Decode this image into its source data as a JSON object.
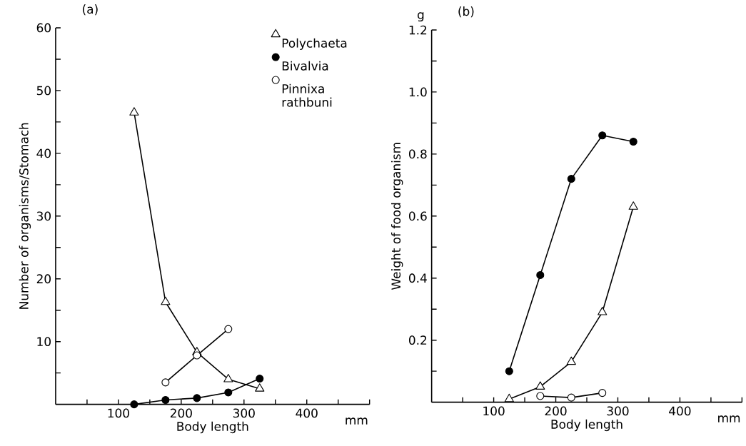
{
  "chart_data": [
    {
      "type": "line",
      "title": "(a)",
      "xlabel": "Body length",
      "ylabel": "Number of organisms/Stomach",
      "annotations": [
        "mm"
      ],
      "x": [
        125,
        175,
        225,
        275,
        325
      ],
      "xlim": [
        0,
        500
      ],
      "ylim": [
        0,
        60
      ],
      "xticks": [
        {
          "value": 50,
          "label": null
        },
        100,
        {
          "value": 150,
          "label": null
        },
        200,
        {
          "value": 250,
          "label": null
        },
        300,
        {
          "value": 350,
          "label": null
        },
        400,
        {
          "value": 450,
          "label": null
        },
        {
          "value": 500,
          "label": null
        }
      ],
      "yticks": [
        {
          "value": 5,
          "label": null
        },
        10,
        {
          "value": 15,
          "label": null
        },
        20,
        {
          "value": 25,
          "label": null
        },
        30,
        {
          "value": 35,
          "label": null
        },
        40,
        {
          "value": 45,
          "label": null
        },
        50,
        {
          "value": 55,
          "label": null
        },
        60
      ],
      "legend": "top right",
      "line_style": "solid",
      "series": [
        {
          "name": "Polychaeta",
          "color": "#ffffff",
          "marker": "triangle",
          "values": [
            46.5,
            16.3,
            8.3,
            4.0,
            2.5
          ]
        },
        {
          "name": "Bivalvia",
          "color": "#000000",
          "marker": "circle",
          "values": [
            0.0,
            0.7,
            1.0,
            1.9,
            4.1
          ]
        },
        {
          "name": "Pinnixa rathbuni",
          "color": "#ffffff",
          "marker": "circle",
          "values": [
            null,
            3.5,
            7.8,
            12.0,
            null
          ]
        }
      ]
    },
    {
      "type": "line",
      "title": "(b)",
      "xlabel": "Body length",
      "ylabel": "Weight of food organism",
      "annotations": [
        "mm",
        "g"
      ],
      "x": [
        125,
        175,
        225,
        275,
        325
      ],
      "xlim": [
        0,
        500
      ],
      "ylim": [
        0,
        1.2
      ],
      "xticks": [
        {
          "value": 50,
          "label": null
        },
        100,
        {
          "value": 150,
          "label": null
        },
        200,
        {
          "value": 250,
          "label": null
        },
        300,
        {
          "value": 350,
          "label": null
        },
        400,
        {
          "value": 450,
          "label": null
        },
        {
          "value": 500,
          "label": null
        }
      ],
      "yticks": [
        {
          "value": 0.1,
          "label": null
        },
        {
          "value": 0.2,
          "label": "0.2"
        },
        {
          "value": 0.3,
          "label": null
        },
        {
          "value": 0.4,
          "label": "0.4"
        },
        {
          "value": 0.5,
          "label": null
        },
        {
          "value": 0.6,
          "label": "0.6"
        },
        {
          "value": 0.7,
          "label": null
        },
        {
          "value": 0.8,
          "label": "0.8"
        },
        {
          "value": 0.9,
          "label": null
        },
        {
          "value": 1.0,
          "label": "1.0"
        },
        {
          "value": 1.1,
          "label": null
        },
        {
          "value": 1.2,
          "label": "1.2"
        }
      ],
      "line_style": "solid",
      "series": [
        {
          "color": "#ffffff",
          "marker": "triangle",
          "values": [
            0.01,
            0.05,
            0.13,
            0.29,
            0.63
          ]
        },
        {
          "color": "#000000",
          "marker": "circle",
          "values": [
            0.1,
            0.41,
            0.72,
            0.86,
            0.84
          ]
        },
        {
          "color": "#ffffff",
          "marker": "circle",
          "values": [
            null,
            0.02,
            0.015,
            0.03,
            null
          ]
        }
      ]
    }
  ]
}
